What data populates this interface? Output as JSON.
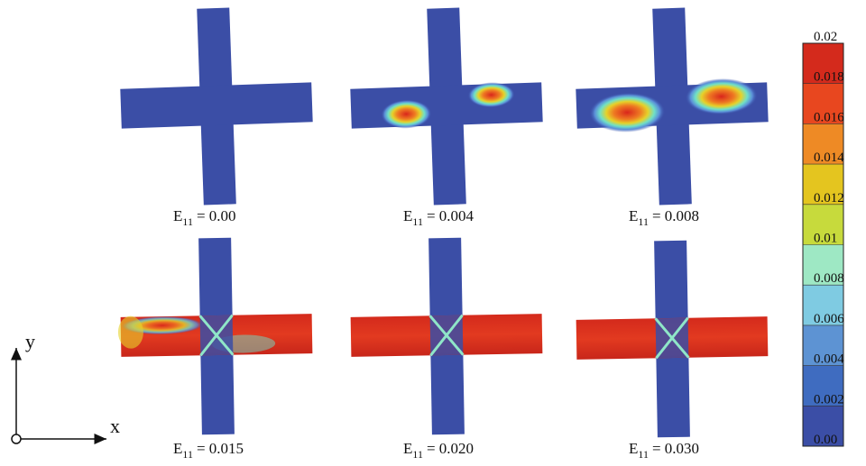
{
  "panels": [
    {
      "symbol": "E",
      "subscript": "11",
      "rest": "= 0.00"
    },
    {
      "symbol": "E",
      "subscript": "11",
      "rest": "= 0.004"
    },
    {
      "symbol": "E",
      "subscript": "11",
      "rest": "= 0.008"
    },
    {
      "symbol": "E",
      "subscript": "11",
      "rest": "= 0.015"
    },
    {
      "symbol": "E",
      "subscript": "11",
      "rest": "= 0.020"
    },
    {
      "symbol": "E",
      "subscript": "11",
      "rest": "= 0.030"
    }
  ],
  "colorbar": {
    "labels": [
      "0.02",
      "0.018",
      "0.016",
      "0.014",
      "0.012",
      "0.01",
      "0.008",
      "0.006",
      "0.004",
      "0.002",
      "0.00"
    ]
  },
  "axes": {
    "y": "y",
    "x": "x"
  }
}
